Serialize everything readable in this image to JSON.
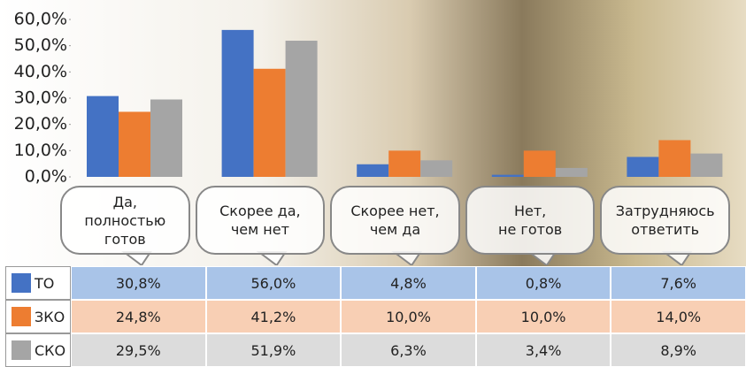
{
  "chart_data": {
    "type": "bar",
    "categories": [
      "Да,\nполностью\nготов",
      "Скорее да,\nчем нет",
      "Скорее нет,\nчем да",
      "Нет,\nне готов",
      "Затрудняюсь\nответить"
    ],
    "ylim": [
      0,
      60
    ],
    "yticks": [
      {
        "value": 0,
        "label": "0,0%"
      },
      {
        "value": 10,
        "label": "10,0%"
      },
      {
        "value": 20,
        "label": "20,0%"
      },
      {
        "value": 30,
        "label": "30,0%"
      },
      {
        "value": 40,
        "label": "40,0%"
      },
      {
        "value": 50,
        "label": "50,0%"
      },
      {
        "value": 60,
        "label": "60,0%"
      }
    ],
    "series": [
      {
        "name": "ТО",
        "color": "#4472c4",
        "row_color": "#a9c4e8",
        "values": [
          30.8,
          56.0,
          4.8,
          0.8,
          7.6
        ],
        "value_labels": [
          "30,8%",
          "56,0%",
          "4,8%",
          "0,8%",
          "7,6%"
        ]
      },
      {
        "name": "ЗКО",
        "color": "#ed7d31",
        "row_color": "#f8cfb4",
        "values": [
          24.8,
          41.2,
          10.0,
          10.0,
          14.0
        ],
        "value_labels": [
          "24,8%",
          "41,2%",
          "10,0%",
          "10,0%",
          "14,0%"
        ]
      },
      {
        "name": "СКО",
        "color": "#a5a5a5",
        "row_color": "#dcdcdc",
        "values": [
          29.5,
          51.9,
          6.3,
          3.4,
          8.9
        ],
        "value_labels": [
          "29,5%",
          "51,9%",
          "6,3%",
          "3,4%",
          "8,9%"
        ]
      }
    ]
  }
}
